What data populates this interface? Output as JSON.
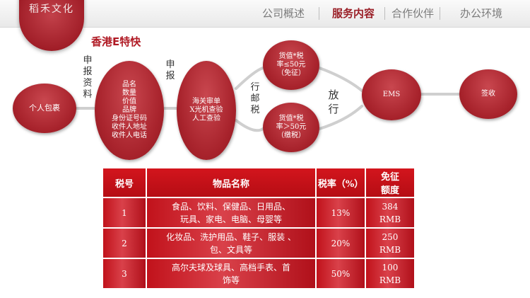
{
  "brand": {
    "logo_text": "稻禾文化"
  },
  "nav": {
    "items": [
      {
        "label": "公司概述",
        "active": false
      },
      {
        "label": "服务内容",
        "active": true
      },
      {
        "label": "合作伙伴",
        "active": false
      },
      {
        "label": "办公环境",
        "active": false
      }
    ]
  },
  "section_title": "香港E特快",
  "flow": {
    "nodes": {
      "personal_parcel": "个人包裹",
      "declare_info": "品名\n数量\n价值\n品牌\n身份证号码\n收件人地址\n收件人电话",
      "customs_check": "海关审单\nX光机查验\n人工查验",
      "tax_exempt": "货值*税\n率≤50元\n（免征）",
      "tax_paid": "货值*税\n率＞50元\n（缴税）",
      "ems": "EMS",
      "sign": "签收"
    },
    "labels": {
      "declare": "申\n报\n资\n料",
      "report": "申\n报",
      "postal_tax": "行\n邮\n税",
      "release": "放\n行"
    }
  },
  "tax_table": {
    "headers": [
      "税号",
      "物品名称",
      "税率（%）",
      "免征\n额度"
    ],
    "rows": [
      {
        "code": "1",
        "items": "食品、饮料、保健品、日用品、\n玩具、家电、电脑、母婴等",
        "rate": "13%",
        "exempt": "384\nRMB"
      },
      {
        "code": "2",
        "items": "化妆品、洗护用品、鞋子、服装 、\n包、文具等",
        "rate": "20%",
        "exempt": "250\nRMB"
      },
      {
        "code": "3",
        "items": "高尔夫球及球具、高档手表、首\n饰等",
        "rate": "50%",
        "exempt": "100\nRMB"
      }
    ]
  },
  "colors": {
    "accent": "#a8232c",
    "nav_active": "#9a1f27"
  }
}
